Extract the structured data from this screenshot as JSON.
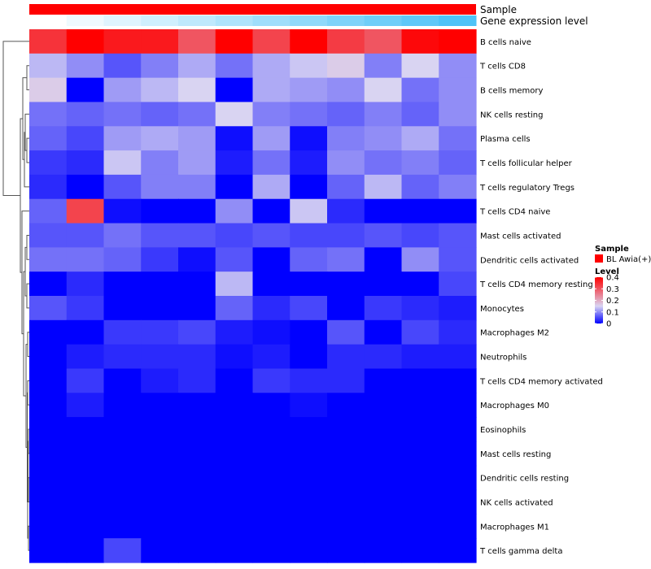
{
  "chart_data": {
    "type": "heatmap",
    "annotations": [
      {
        "label": "Sample",
        "color": "#ff0000"
      },
      {
        "label": "Gene expression level",
        "gradient_from": "#ffffff",
        "gradient_to": "#4fc3f7"
      }
    ],
    "rows": [
      "B cells naive",
      "T cells CD8",
      "B cells memory",
      "NK cells resting",
      "Plasma cells",
      "T cells follicular helper",
      "T cells regulatory  Tregs",
      "T cells CD4 naive",
      "Mast cells activated",
      "Dendritic cells activated",
      "T cells CD4 memory resting",
      "Monocytes",
      "Macrophages M2",
      "Neutrophils",
      "T cells CD4 memory activated",
      "Macrophages M0",
      "Eosinophils",
      "Mast cells resting",
      "Dendritic cells resting",
      "NK cells activated",
      "Macrophages M1",
      "T cells gamma delta"
    ],
    "values": [
      [
        0.34,
        0.4,
        0.37,
        0.37,
        0.3,
        0.4,
        0.32,
        0.4,
        0.33,
        0.3,
        0.39,
        0.4
      ],
      [
        0.13,
        0.1,
        0.06,
        0.09,
        0.12,
        0.08,
        0.12,
        0.14,
        0.16,
        0.09,
        0.15,
        0.1
      ],
      [
        0.16,
        0.0,
        0.11,
        0.13,
        0.15,
        0.0,
        0.12,
        0.11,
        0.1,
        0.15,
        0.08,
        0.1
      ],
      [
        0.08,
        0.07,
        0.08,
        0.07,
        0.08,
        0.15,
        0.09,
        0.08,
        0.07,
        0.09,
        0.07,
        0.1
      ],
      [
        0.07,
        0.05,
        0.11,
        0.12,
        0.11,
        0.01,
        0.11,
        0.01,
        0.09,
        0.1,
        0.12,
        0.08
      ],
      [
        0.04,
        0.03,
        0.14,
        0.09,
        0.11,
        0.02,
        0.08,
        0.02,
        0.1,
        0.08,
        0.09,
        0.07
      ],
      [
        0.03,
        0.0,
        0.06,
        0.09,
        0.09,
        0.0,
        0.12,
        0.0,
        0.07,
        0.13,
        0.07,
        0.09
      ],
      [
        0.07,
        0.32,
        0.01,
        0.0,
        0.0,
        0.1,
        0.0,
        0.14,
        0.03,
        0.0,
        0.0,
        0.0
      ],
      [
        0.06,
        0.06,
        0.08,
        0.06,
        0.06,
        0.05,
        0.06,
        0.05,
        0.05,
        0.06,
        0.05,
        0.06
      ],
      [
        0.08,
        0.08,
        0.07,
        0.04,
        0.01,
        0.06,
        0.0,
        0.07,
        0.08,
        0.0,
        0.1,
        0.06
      ],
      [
        0.0,
        0.03,
        0.0,
        0.0,
        0.0,
        0.13,
        0.0,
        0.0,
        0.0,
        0.0,
        0.0,
        0.05
      ],
      [
        0.06,
        0.04,
        0.0,
        0.0,
        0.0,
        0.07,
        0.03,
        0.05,
        0.0,
        0.04,
        0.03,
        0.02
      ],
      [
        0.0,
        0.0,
        0.04,
        0.04,
        0.05,
        0.02,
        0.01,
        0.0,
        0.06,
        0.0,
        0.05,
        0.03
      ],
      [
        0.0,
        0.02,
        0.03,
        0.03,
        0.03,
        0.01,
        0.02,
        0.0,
        0.03,
        0.03,
        0.02,
        0.02
      ],
      [
        0.0,
        0.04,
        0.0,
        0.02,
        0.03,
        0.0,
        0.04,
        0.03,
        0.03,
        0.0,
        0.0,
        0.0
      ],
      [
        0.0,
        0.02,
        0.0,
        0.0,
        0.0,
        0.0,
        0.0,
        0.01,
        0.0,
        0.0,
        0.0,
        0.0
      ],
      [
        0.0,
        0.0,
        0.0,
        0.0,
        0.0,
        0.0,
        0.0,
        0.0,
        0.0,
        0.0,
        0.0,
        0.0
      ],
      [
        0.0,
        0.0,
        0.0,
        0.0,
        0.0,
        0.0,
        0.0,
        0.0,
        0.0,
        0.0,
        0.0,
        0.0
      ],
      [
        0.0,
        0.0,
        0.0,
        0.0,
        0.0,
        0.0,
        0.0,
        0.0,
        0.0,
        0.0,
        0.0,
        0.0
      ],
      [
        0.0,
        0.0,
        0.0,
        0.0,
        0.0,
        0.0,
        0.0,
        0.0,
        0.0,
        0.0,
        0.0,
        0.0
      ],
      [
        0.0,
        0.0,
        0.0,
        0.0,
        0.0,
        0.0,
        0.0,
        0.0,
        0.0,
        0.0,
        0.0,
        0.0
      ],
      [
        0.0,
        0.0,
        0.05,
        0.0,
        0.0,
        0.0,
        0.0,
        0.0,
        0.0,
        0.0,
        0.0,
        0.0
      ]
    ],
    "color_scale": {
      "min": 0,
      "max": 0.4,
      "stops": [
        {
          "value": 0.0,
          "color": "#0000ff"
        },
        {
          "value": 0.15,
          "color": "#d9d4f2"
        },
        {
          "value": 0.4,
          "color": "#ff0000"
        }
      ]
    },
    "legend": {
      "sample_title": "Sample",
      "sample_entry": "BL Awia(+)",
      "sample_color": "#ff0000",
      "level_title": "Level",
      "level_ticks": [
        "0",
        "0.1",
        "0.2",
        "0.3",
        "0.4"
      ],
      "placement": "right"
    },
    "dendrogram_side": "left"
  }
}
